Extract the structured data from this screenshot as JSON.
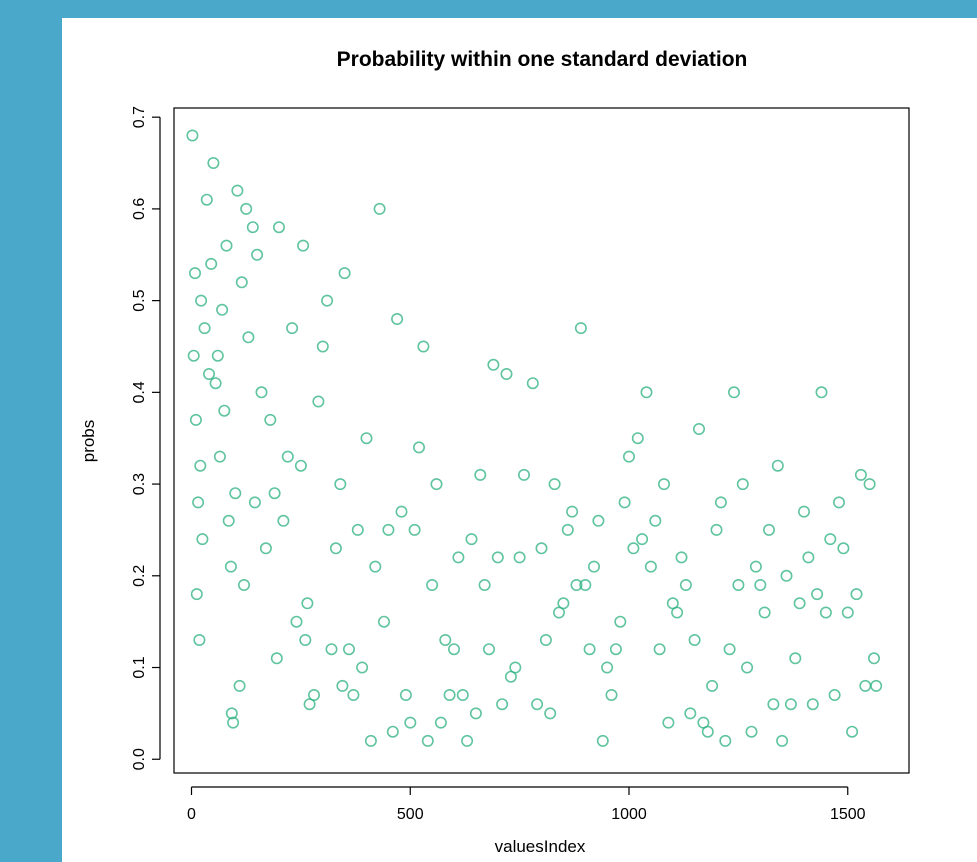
{
  "background": "#4AA8CB",
  "panel_color": "#FFFFFF",
  "point_color": "#2BB07F",
  "chart_data": {
    "type": "scatter",
    "title": "Probability within one standard deviation",
    "xlabel": "valuesIndex",
    "ylabel": "probs",
    "xlim": [
      -40,
      1640
    ],
    "ylim": [
      -0.015,
      0.71
    ],
    "xticks": [
      0,
      500,
      1000,
      1500
    ],
    "yticks": [
      0.0,
      0.1,
      0.2,
      0.3,
      0.4,
      0.5,
      0.6,
      0.7
    ],
    "xtick_labels": [
      "0",
      "500",
      "1000",
      "1500"
    ],
    "ytick_labels": [
      "0.0",
      "0.1",
      "0.2",
      "0.3",
      "0.4",
      "0.5",
      "0.6",
      "0.7"
    ],
    "marker": "open-circle",
    "grid": false,
    "legend": "none",
    "n_points": 1570,
    "series": [
      {
        "points": [
          [
            2,
            0.68
          ],
          [
            5,
            0.44
          ],
          [
            8,
            0.53
          ],
          [
            10,
            0.37
          ],
          [
            12,
            0.18
          ],
          [
            15,
            0.28
          ],
          [
            18,
            0.13
          ],
          [
            20,
            0.32
          ],
          [
            22,
            0.5
          ],
          [
            25,
            0.24
          ],
          [
            30,
            0.47
          ],
          [
            35,
            0.61
          ],
          [
            40,
            0.42
          ],
          [
            45,
            0.54
          ],
          [
            50,
            0.65
          ],
          [
            55,
            0.41
          ],
          [
            60,
            0.44
          ],
          [
            65,
            0.33
          ],
          [
            70,
            0.49
          ],
          [
            75,
            0.38
          ],
          [
            80,
            0.56
          ],
          [
            85,
            0.26
          ],
          [
            90,
            0.21
          ],
          [
            92,
            0.05
          ],
          [
            95,
            0.04
          ],
          [
            100,
            0.29
          ],
          [
            105,
            0.62
          ],
          [
            110,
            0.08
          ],
          [
            115,
            0.52
          ],
          [
            120,
            0.19
          ],
          [
            125,
            0.6
          ],
          [
            130,
            0.46
          ],
          [
            140,
            0.58
          ],
          [
            145,
            0.28
          ],
          [
            150,
            0.55
          ],
          [
            160,
            0.4
          ],
          [
            170,
            0.23
          ],
          [
            180,
            0.37
          ],
          [
            190,
            0.29
          ],
          [
            195,
            0.11
          ],
          [
            200,
            0.58
          ],
          [
            210,
            0.26
          ],
          [
            220,
            0.33
          ],
          [
            230,
            0.47
          ],
          [
            240,
            0.15
          ],
          [
            250,
            0.32
          ],
          [
            255,
            0.56
          ],
          [
            260,
            0.13
          ],
          [
            265,
            0.17
          ],
          [
            270,
            0.06
          ],
          [
            280,
            0.07
          ],
          [
            290,
            0.39
          ],
          [
            300,
            0.45
          ],
          [
            310,
            0.5
          ],
          [
            320,
            0.12
          ],
          [
            330,
            0.23
          ],
          [
            340,
            0.3
          ],
          [
            345,
            0.08
          ],
          [
            350,
            0.53
          ],
          [
            360,
            0.12
          ],
          [
            370,
            0.07
          ],
          [
            380,
            0.25
          ],
          [
            390,
            0.1
          ],
          [
            400,
            0.35
          ],
          [
            410,
            0.02
          ],
          [
            420,
            0.21
          ],
          [
            430,
            0.6
          ],
          [
            440,
            0.15
          ],
          [
            450,
            0.25
          ],
          [
            460,
            0.03
          ],
          [
            470,
            0.48
          ],
          [
            480,
            0.27
          ],
          [
            490,
            0.07
          ],
          [
            500,
            0.04
          ],
          [
            510,
            0.25
          ],
          [
            520,
            0.34
          ],
          [
            530,
            0.45
          ],
          [
            540,
            0.02
          ],
          [
            550,
            0.19
          ],
          [
            560,
            0.3
          ],
          [
            570,
            0.04
          ],
          [
            580,
            0.13
          ],
          [
            590,
            0.07
          ],
          [
            600,
            0.12
          ],
          [
            610,
            0.22
          ],
          [
            620,
            0.07
          ],
          [
            630,
            0.02
          ],
          [
            640,
            0.24
          ],
          [
            650,
            0.05
          ],
          [
            660,
            0.31
          ],
          [
            670,
            0.19
          ],
          [
            680,
            0.12
          ],
          [
            690,
            0.43
          ],
          [
            700,
            0.22
          ],
          [
            710,
            0.06
          ],
          [
            720,
            0.42
          ],
          [
            730,
            0.09
          ],
          [
            740,
            0.1
          ],
          [
            750,
            0.22
          ],
          [
            760,
            0.31
          ],
          [
            780,
            0.41
          ],
          [
            790,
            0.06
          ],
          [
            800,
            0.23
          ],
          [
            810,
            0.13
          ],
          [
            820,
            0.05
          ],
          [
            830,
            0.3
          ],
          [
            840,
            0.16
          ],
          [
            850,
            0.17
          ],
          [
            860,
            0.25
          ],
          [
            870,
            0.27
          ],
          [
            880,
            0.19
          ],
          [
            890,
            0.47
          ],
          [
            900,
            0.19
          ],
          [
            910,
            0.12
          ],
          [
            920,
            0.21
          ],
          [
            930,
            0.26
          ],
          [
            940,
            0.02
          ],
          [
            950,
            0.1
          ],
          [
            960,
            0.07
          ],
          [
            970,
            0.12
          ],
          [
            980,
            0.15
          ],
          [
            990,
            0.28
          ],
          [
            1000,
            0.33
          ],
          [
            1010,
            0.23
          ],
          [
            1020,
            0.35
          ],
          [
            1030,
            0.24
          ],
          [
            1040,
            0.4
          ],
          [
            1050,
            0.21
          ],
          [
            1060,
            0.26
          ],
          [
            1070,
            0.12
          ],
          [
            1080,
            0.3
          ],
          [
            1090,
            0.04
          ],
          [
            1100,
            0.17
          ],
          [
            1110,
            0.16
          ],
          [
            1120,
            0.22
          ],
          [
            1130,
            0.19
          ],
          [
            1140,
            0.05
          ],
          [
            1150,
            0.13
          ],
          [
            1160,
            0.36
          ],
          [
            1170,
            0.04
          ],
          [
            1180,
            0.03
          ],
          [
            1190,
            0.08
          ],
          [
            1200,
            0.25
          ],
          [
            1210,
            0.28
          ],
          [
            1220,
            0.02
          ],
          [
            1230,
            0.12
          ],
          [
            1240,
            0.4
          ],
          [
            1250,
            0.19
          ],
          [
            1260,
            0.3
          ],
          [
            1270,
            0.1
          ],
          [
            1280,
            0.03
          ],
          [
            1290,
            0.21
          ],
          [
            1300,
            0.19
          ],
          [
            1310,
            0.16
          ],
          [
            1320,
            0.25
          ],
          [
            1330,
            0.06
          ],
          [
            1340,
            0.32
          ],
          [
            1350,
            0.02
          ],
          [
            1360,
            0.2
          ],
          [
            1370,
            0.06
          ],
          [
            1380,
            0.11
          ],
          [
            1390,
            0.17
          ],
          [
            1400,
            0.27
          ],
          [
            1410,
            0.22
          ],
          [
            1420,
            0.06
          ],
          [
            1430,
            0.18
          ],
          [
            1440,
            0.4
          ],
          [
            1450,
            0.16
          ],
          [
            1460,
            0.24
          ],
          [
            1470,
            0.07
          ],
          [
            1480,
            0.28
          ],
          [
            1490,
            0.23
          ],
          [
            1500,
            0.16
          ],
          [
            1510,
            0.03
          ],
          [
            1520,
            0.18
          ],
          [
            1530,
            0.31
          ],
          [
            1540,
            0.08
          ],
          [
            1550,
            0.3
          ],
          [
            1560,
            0.11
          ],
          [
            1565,
            0.08
          ]
        ]
      }
    ]
  }
}
